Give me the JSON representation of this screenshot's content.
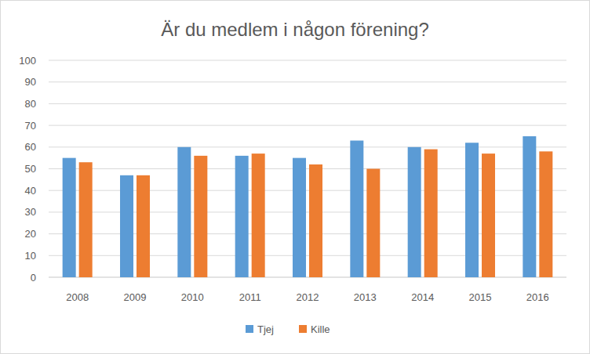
{
  "chart_data": {
    "type": "bar",
    "title": "Är du medlem i någon förening?",
    "categories": [
      "2008",
      "2009",
      "2010",
      "2011",
      "2012",
      "2013",
      "2014",
      "2015",
      "2016"
    ],
    "series": [
      {
        "name": "Tjej",
        "color": "#5b9bd5",
        "values": [
          55,
          47,
          60,
          56,
          55,
          63,
          60,
          62,
          65
        ]
      },
      {
        "name": "Kille",
        "color": "#ed7d31",
        "values": [
          53,
          47,
          56,
          57,
          52,
          50,
          59,
          57,
          58
        ]
      }
    ],
    "ylim": [
      0,
      100
    ],
    "yticks": [
      0,
      10,
      20,
      30,
      40,
      50,
      60,
      70,
      80,
      90,
      100
    ],
    "grid": true,
    "legend": "bottom"
  }
}
